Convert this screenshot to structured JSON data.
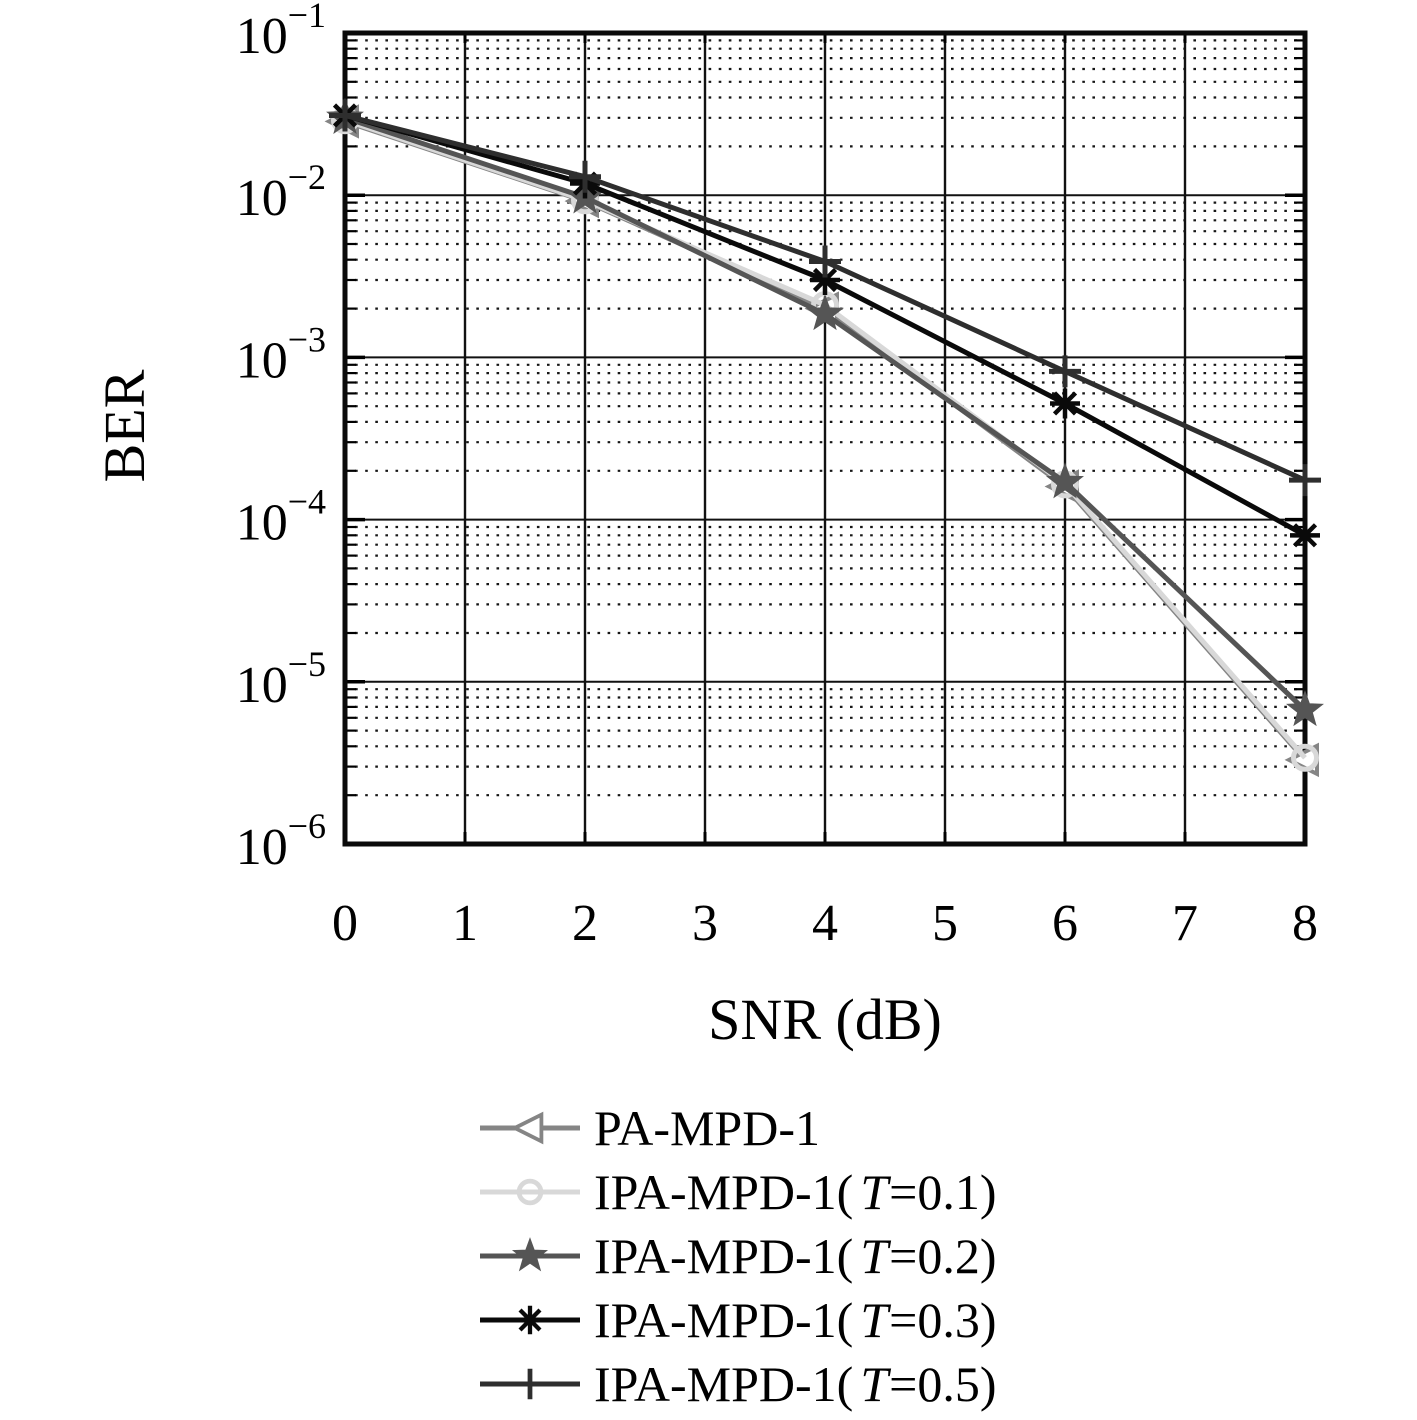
{
  "chart_data": {
    "type": "line",
    "title": "",
    "xlabel": "SNR (dB)",
    "ylabel": "BER",
    "xlim": [
      0,
      8
    ],
    "ylim": [
      1e-06,
      0.1
    ],
    "y_scale": "log",
    "grid": "major solid, log-minor dotted",
    "legend_position": "below plot",
    "xticks": [
      0,
      1,
      2,
      3,
      4,
      5,
      6,
      7,
      8
    ],
    "ytick_exponents": [
      -1,
      -2,
      -3,
      -4,
      -5,
      -6
    ],
    "x": [
      0,
      2,
      4,
      6,
      8
    ],
    "series": [
      {
        "name": "PA-MPD-1",
        "label_prefix": "PA-MPD-1",
        "label_t": "",
        "label_suffix": "",
        "color": "#858585",
        "marker": "triangle-left",
        "marker_fill": "open",
        "values": [
          0.0285,
          0.0092,
          0.002,
          0.00016,
          3.3e-06
        ]
      },
      {
        "name": "IPA-MPD-1(T=0.1)",
        "label_prefix": "IPA-MPD-1(",
        "label_t": "T",
        "label_suffix": "=0.1)",
        "color": "#d8d8d8",
        "marker": "circle",
        "marker_fill": "open",
        "values": [
          0.029,
          0.0093,
          0.0021,
          0.000165,
          3.4e-06
        ]
      },
      {
        "name": "IPA-MPD-1(T=0.2)",
        "label_prefix": "IPA-MPD-1(",
        "label_t": "T",
        "label_suffix": "=0.2)",
        "color": "#555555",
        "marker": "star",
        "marker_fill": "filled",
        "values": [
          0.03,
          0.0097,
          0.00185,
          0.00017,
          6.7e-06
        ]
      },
      {
        "name": "IPA-MPD-1(T=0.3)",
        "label_prefix": "IPA-MPD-1(",
        "label_t": "T",
        "label_suffix": "=0.3)",
        "color": "#0a0a0a",
        "marker": "asterisk",
        "marker_fill": "stroke",
        "values": [
          0.031,
          0.0118,
          0.003,
          0.00052,
          8e-05
        ]
      },
      {
        "name": "IPA-MPD-1(T=0.5)",
        "label_prefix": "IPA-MPD-1(",
        "label_t": "T",
        "label_suffix": "=0.5)",
        "color": "#2e2e2e",
        "marker": "plus",
        "marker_fill": "stroke",
        "values": [
          0.031,
          0.013,
          0.0039,
          0.00082,
          0.000175
        ]
      }
    ]
  }
}
